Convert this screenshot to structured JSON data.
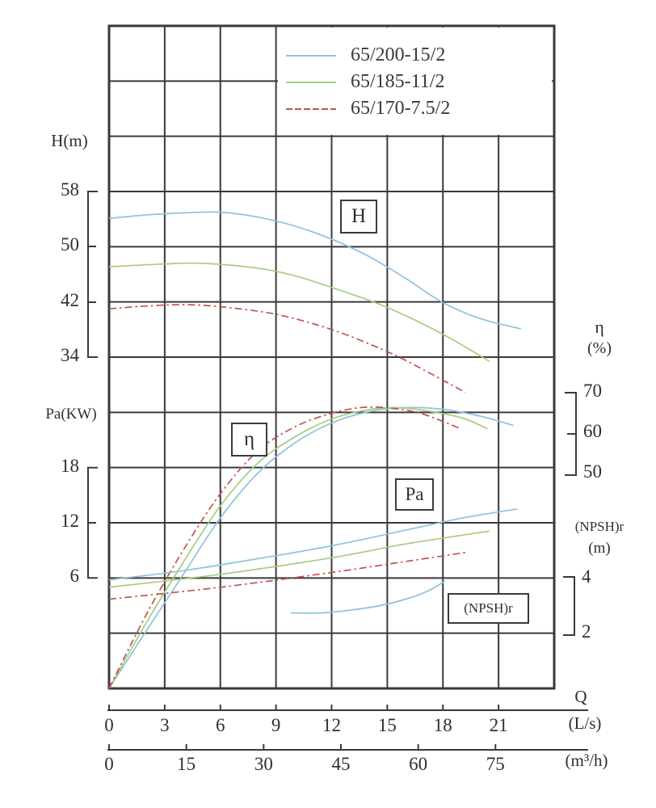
{
  "colors": {
    "blue": "#8fc3da",
    "green": "#a6cd7e",
    "red": "#c4534e",
    "grid": "#3a3a3a",
    "text": "#2f2f2f"
  },
  "legend": {
    "items": [
      {
        "label": "65/200-15/2",
        "color": "blue",
        "dashed": false
      },
      {
        "label": "65/185-11/2",
        "color": "green",
        "dashed": false
      },
      {
        "label": "65/170-7.5/2",
        "color": "red",
        "dashed": true
      }
    ]
  },
  "curve_labels": {
    "h": "H",
    "eta": "η",
    "pa": "Pa",
    "npsh": "(NPSH)r"
  },
  "chart_data": {
    "type": "line",
    "grid": true,
    "x_axis_primary": {
      "label": "Q",
      "unit": "(L/s)",
      "ticks": [
        0,
        3,
        6,
        9,
        12,
        15,
        18,
        21
      ],
      "range": [
        0,
        24
      ]
    },
    "x_axis_secondary": {
      "unit": "(m³/h)",
      "ticks": [
        0,
        15,
        30,
        45,
        60,
        75
      ],
      "range": [
        0,
        86.4
      ]
    },
    "y_axes": {
      "H": {
        "label": "H(m)",
        "ticks": [
          58,
          50,
          42,
          34
        ],
        "range": [
          34,
          58
        ],
        "side": "left"
      },
      "Pa": {
        "label": "Pa(KW)",
        "ticks": [
          18,
          12,
          6
        ],
        "range": [
          6,
          18
        ],
        "side": "left"
      },
      "eta": {
        "label": "η",
        "unit": "(%)",
        "ticks": [
          70,
          60,
          50
        ],
        "range": [
          50,
          70
        ],
        "side": "right"
      },
      "NPSH": {
        "label": "(NPSH)r",
        "unit": "(m)",
        "ticks": [
          4,
          2
        ],
        "range": [
          2,
          4
        ],
        "side": "right"
      }
    },
    "series": [
      {
        "quantity": "H",
        "model": "65/200-15/2",
        "color": "blue",
        "dashed": false,
        "points": [
          [
            0,
            54.1
          ],
          [
            2,
            54.6
          ],
          [
            4,
            54.9
          ],
          [
            6,
            55.0
          ],
          [
            8,
            54.3
          ],
          [
            10,
            53.0
          ],
          [
            12,
            51.1
          ],
          [
            14,
            48.6
          ],
          [
            16,
            45.4
          ],
          [
            18,
            41.9
          ],
          [
            20,
            39.6
          ],
          [
            22.2,
            38.1
          ]
        ]
      },
      {
        "quantity": "H",
        "model": "65/185-11/2",
        "color": "green",
        "dashed": false,
        "points": [
          [
            0,
            47.1
          ],
          [
            3,
            47.5
          ],
          [
            5,
            47.6
          ],
          [
            8,
            46.9
          ],
          [
            10,
            45.8
          ],
          [
            12,
            44.1
          ],
          [
            15,
            41.2
          ],
          [
            18,
            37.3
          ],
          [
            20.5,
            33.4
          ]
        ]
      },
      {
        "quantity": "H",
        "model": "65/170-7.5/2",
        "color": "red",
        "dashed": true,
        "points": [
          [
            0,
            41.0
          ],
          [
            2,
            41.4
          ],
          [
            4,
            41.6
          ],
          [
            6,
            41.3
          ],
          [
            9,
            40.2
          ],
          [
            12,
            38.0
          ],
          [
            15,
            34.8
          ],
          [
            17,
            32.1
          ],
          [
            19.2,
            28.9
          ]
        ]
      },
      {
        "quantity": "eta",
        "model": "65/200-15/2",
        "color": "blue",
        "dashed": false,
        "points": [
          [
            0,
            0
          ],
          [
            2,
            11
          ],
          [
            4,
            25
          ],
          [
            6,
            39
          ],
          [
            8,
            50
          ],
          [
            10,
            57.5
          ],
          [
            12,
            62.5
          ],
          [
            14,
            65.3
          ],
          [
            16,
            66.3
          ],
          [
            18,
            65.9
          ],
          [
            20,
            64.2
          ],
          [
            21.8,
            61.9
          ]
        ]
      },
      {
        "quantity": "eta",
        "model": "65/185-11/2",
        "color": "green",
        "dashed": false,
        "points": [
          [
            0,
            0
          ],
          [
            2,
            13
          ],
          [
            4,
            28
          ],
          [
            6,
            42
          ],
          [
            8,
            52.5
          ],
          [
            10,
            59
          ],
          [
            12,
            63.5
          ],
          [
            14,
            65.8
          ],
          [
            15.5,
            66.3
          ],
          [
            17,
            65.6
          ],
          [
            19,
            63.8
          ],
          [
            20.4,
            61.1
          ]
        ]
      },
      {
        "quantity": "eta",
        "model": "65/170-7.5/2",
        "color": "red",
        "dashed": true,
        "points": [
          [
            0,
            0
          ],
          [
            2,
            15
          ],
          [
            4,
            31
          ],
          [
            6,
            45
          ],
          [
            8,
            55.5
          ],
          [
            10,
            61.5
          ],
          [
            12,
            64.9
          ],
          [
            13.8,
            66.4
          ],
          [
            15.5,
            66.0
          ],
          [
            17,
            64.6
          ],
          [
            18.9,
            61.2
          ]
        ]
      },
      {
        "quantity": "Pa",
        "model": "65/200-15/2",
        "color": "blue",
        "dashed": false,
        "points": [
          [
            0,
            5.8
          ],
          [
            4,
            6.8
          ],
          [
            8,
            8.1
          ],
          [
            12,
            9.5
          ],
          [
            16,
            11.2
          ],
          [
            19,
            12.5
          ],
          [
            22,
            13.5
          ]
        ]
      },
      {
        "quantity": "Pa",
        "model": "65/185-11/2",
        "color": "green",
        "dashed": false,
        "points": [
          [
            0,
            5.0
          ],
          [
            6,
            6.4
          ],
          [
            12,
            8.2
          ],
          [
            16,
            9.7
          ],
          [
            20.5,
            11.1
          ]
        ]
      },
      {
        "quantity": "Pa",
        "model": "65/170-7.5/2",
        "color": "red",
        "dashed": true,
        "points": [
          [
            0,
            3.7
          ],
          [
            6,
            5.0
          ],
          [
            12,
            6.6
          ],
          [
            16,
            7.8
          ],
          [
            19.3,
            8.8
          ]
        ]
      },
      {
        "quantity": "NPSH",
        "model": "",
        "color": "blue",
        "dashed": false,
        "points": [
          [
            9.8,
            2.75
          ],
          [
            11.5,
            2.75
          ],
          [
            13,
            2.85
          ],
          [
            14.5,
            3.0
          ],
          [
            16,
            3.25
          ],
          [
            17.2,
            3.55
          ],
          [
            18.1,
            3.9
          ]
        ]
      }
    ]
  }
}
